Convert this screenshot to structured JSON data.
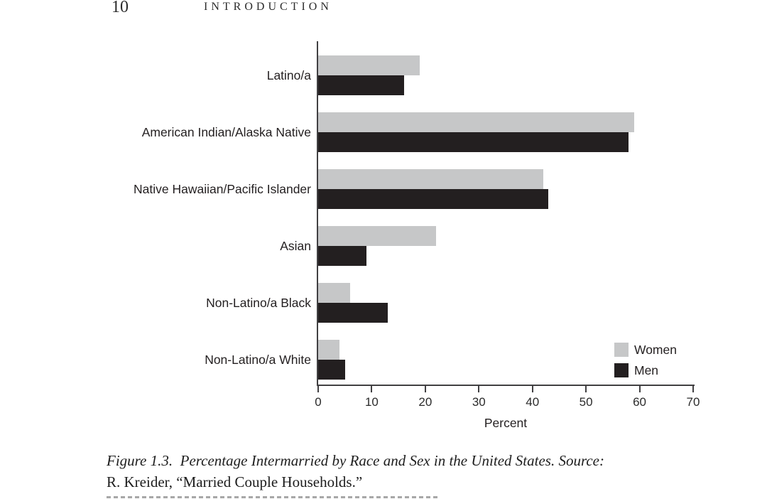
{
  "page": {
    "number": "10",
    "running_head": "INTRODUCTION"
  },
  "chart_data": {
    "type": "bar",
    "orientation": "horizontal",
    "title": "",
    "categories": [
      "Latino/a",
      "American Indian/Alaska Native",
      "Native Hawaiian/Pacific Islander",
      "Asian",
      "Non-Latino/a Black",
      "Non-Latino/a White"
    ],
    "series": [
      {
        "name": "Women",
        "color": "#c6c7c8",
        "values": [
          19,
          59,
          42,
          22,
          6,
          4
        ]
      },
      {
        "name": "Men",
        "color": "#231f20",
        "values": [
          16,
          58,
          43,
          9,
          13,
          5
        ]
      }
    ],
    "xlabel": "Percent",
    "xlim": [
      0,
      70
    ],
    "xticks": [
      0,
      10,
      20,
      30,
      40,
      50,
      60,
      70
    ],
    "grid": false,
    "legend_position": "inside-bottom-right",
    "axis_color": "#414042"
  },
  "caption": {
    "line1": "Figure 1.3.  Percentage Intermarried by Race and Sex in the United States. Source:",
    "line2": "R. Kreider, “Married Couple Households.”"
  }
}
